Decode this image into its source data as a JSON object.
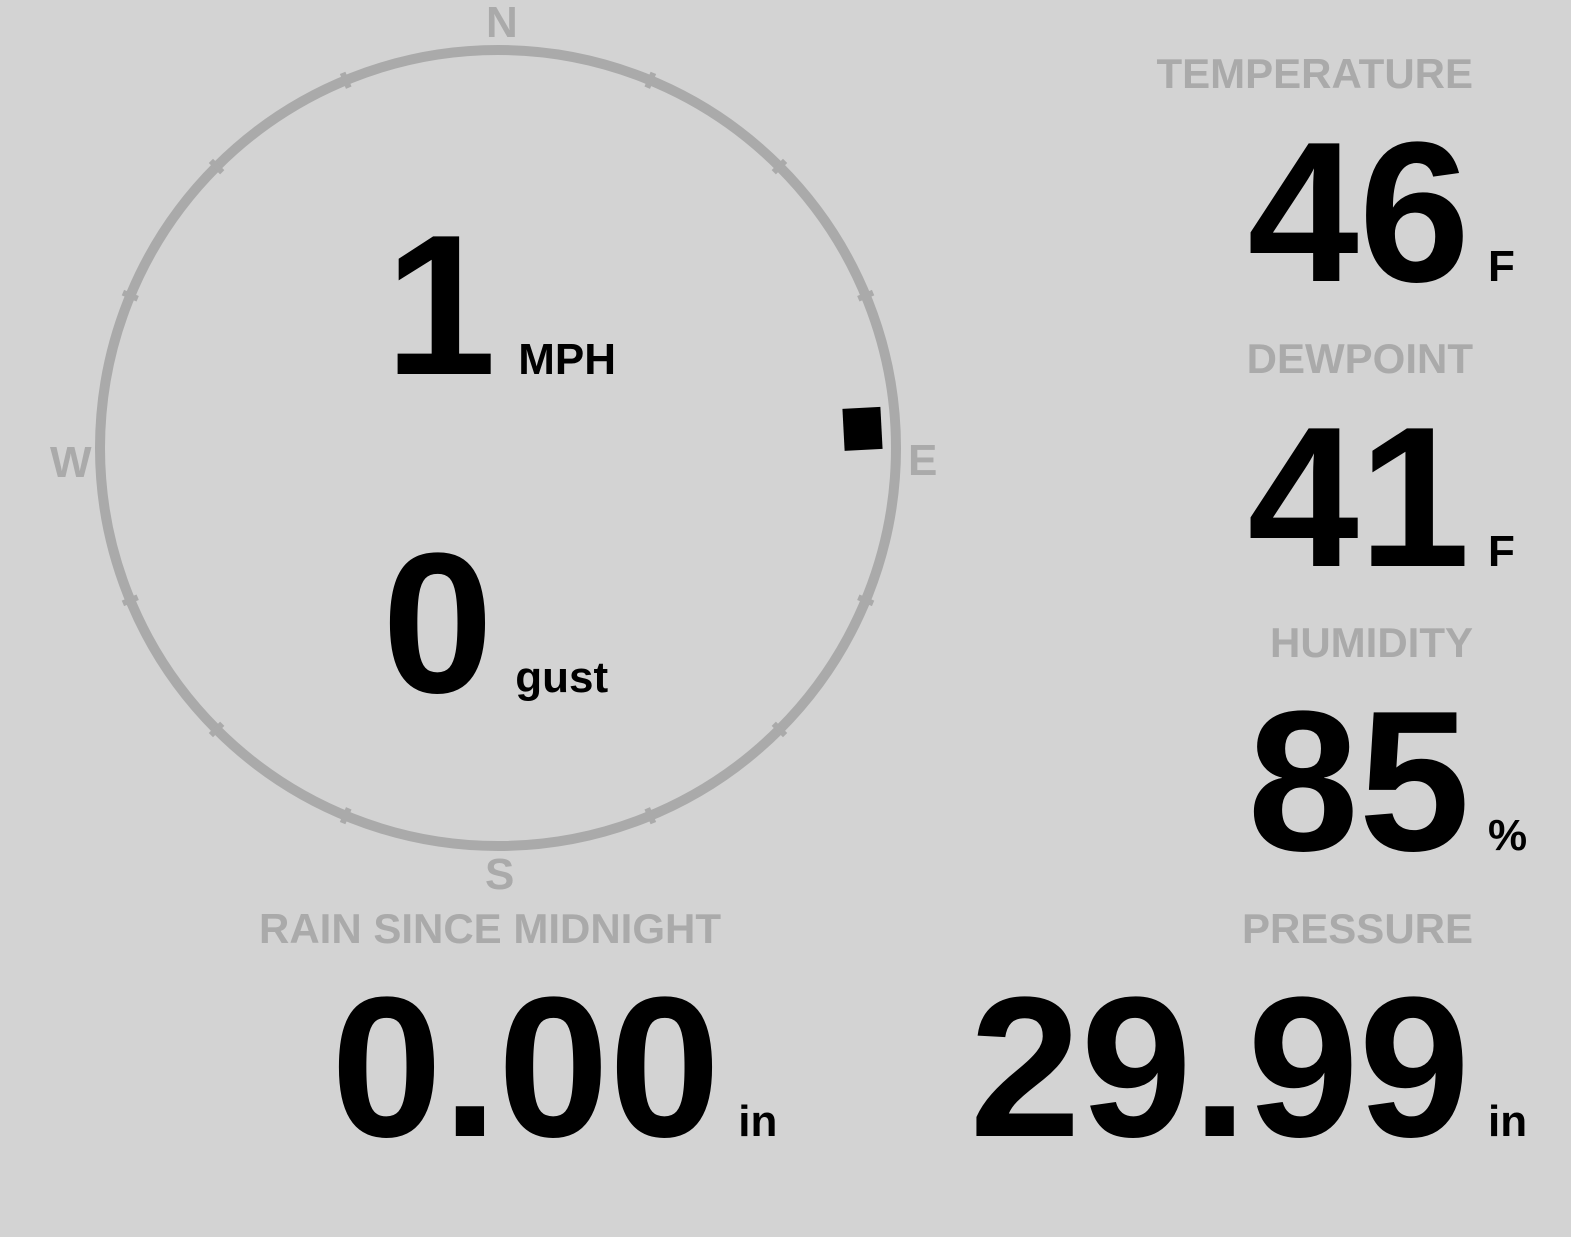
{
  "wind": {
    "speed": "1",
    "speed_unit": "MPH",
    "gust": "0",
    "gust_unit": "gust",
    "direction_degrees": 87,
    "compass": {
      "n": "N",
      "e": "E",
      "s": "S",
      "w": "W"
    }
  },
  "temperature": {
    "label": "TEMPERATURE",
    "value": "46",
    "unit": "F"
  },
  "dewpoint": {
    "label": "DEWPOINT",
    "value": "41",
    "unit": "F"
  },
  "humidity": {
    "label": "HUMIDITY",
    "value": "85",
    "unit": "%"
  },
  "rain": {
    "label": "RAIN SINCE MIDNIGHT",
    "value": "0.00",
    "unit": "in"
  },
  "pressure": {
    "label": "PRESSURE",
    "value": "29.99",
    "unit": "in"
  },
  "colors": {
    "background": "#d3d3d3",
    "label": "#aaaaaa",
    "value": "#000000"
  }
}
